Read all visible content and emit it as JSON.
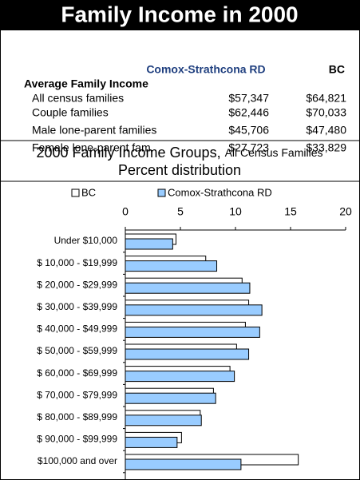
{
  "header": {
    "title": "Family Income in 2000"
  },
  "table": {
    "columns": [
      "Comox-Strathcona RD",
      "BC"
    ],
    "section": "Average Family Income",
    "rows": [
      [
        "All census families",
        "$57,347",
        "$64,821"
      ],
      [
        "Couple families",
        "$62,446",
        "$70,033"
      ],
      [
        "Male lone-parent families",
        "$45,706",
        "$47,480"
      ],
      [
        "Female lone-parent fam.",
        "$27,723",
        "$33,829"
      ]
    ]
  },
  "chart_data": {
    "type": "bar",
    "orientation": "horizontal",
    "title": "2000 Family Income Groups,",
    "title_note": "All Census Families",
    "subtitle": "Percent distribution",
    "categories": [
      "Under $10,000",
      "$ 10,000 - $19,999",
      "$ 20,000 - $29,999",
      "$ 30,000 - $39,999",
      "$ 40,000 - $49,999",
      "$ 50,000 - $59,999",
      "$ 60,000 - $69,999",
      "$ 70,000 - $79,999",
      "$ 80,000 - $89,999",
      "$ 90,000 - $99,999",
      "$100,000 and over"
    ],
    "series": [
      {
        "name": "BC",
        "color": "#ffffff",
        "values": [
          4.6,
          7.3,
          10.6,
          11.2,
          10.9,
          10.1,
          9.5,
          8.0,
          6.8,
          5.1,
          15.7
        ]
      },
      {
        "name": "Comox-Strathcona RD",
        "color": "#99ccff",
        "values": [
          4.3,
          8.3,
          11.3,
          12.4,
          12.2,
          11.2,
          9.9,
          8.2,
          6.9,
          4.7,
          10.5
        ]
      }
    ],
    "xlim": [
      0,
      20
    ],
    "xticks": [
      0,
      5,
      10,
      15,
      20
    ]
  }
}
